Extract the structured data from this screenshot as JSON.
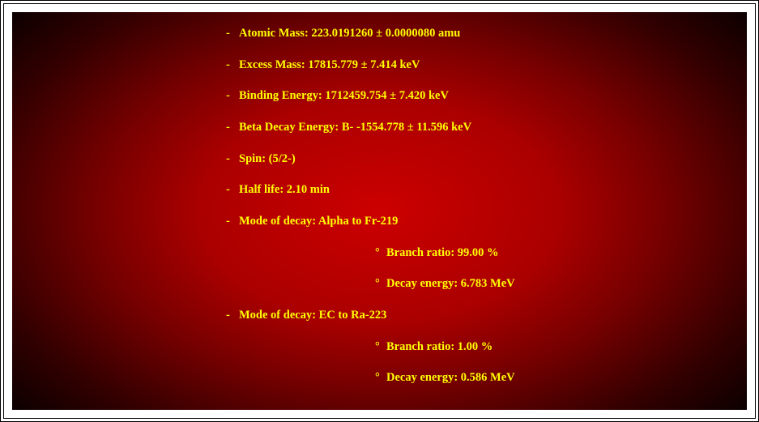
{
  "panel": {
    "text_color": "#ffff00",
    "background_gradient": {
      "type": "radial",
      "center_color": "#cc0000",
      "mid_color": "#770000",
      "edge_color": "#000000"
    }
  },
  "items": [
    {
      "label": "Atomic Mass: 223.0191260 ± 0.0000080 amu"
    },
    {
      "label": "Excess Mass: 17815.779 ± 7.414 keV"
    },
    {
      "label": "Binding Energy: 1712459.754 ± 7.420 keV"
    },
    {
      "label": "Beta Decay Energy: B- -1554.778 ± 11.596 keV"
    },
    {
      "label": "Spin: (5/2-)"
    },
    {
      "label": "Half life: 2.10 min"
    },
    {
      "label": "Mode of decay: Alpha to Fr-219",
      "sub": [
        {
          "label": "Branch ratio: 99.00 %"
        },
        {
          "label": "Decay energy: 6.783 MeV"
        }
      ]
    },
    {
      "label": "Mode of decay: EC to Ra-223",
      "sub": [
        {
          "label": "Branch ratio: 1.00 %"
        },
        {
          "label": "Decay energy: 0.586 MeV"
        }
      ]
    }
  ]
}
